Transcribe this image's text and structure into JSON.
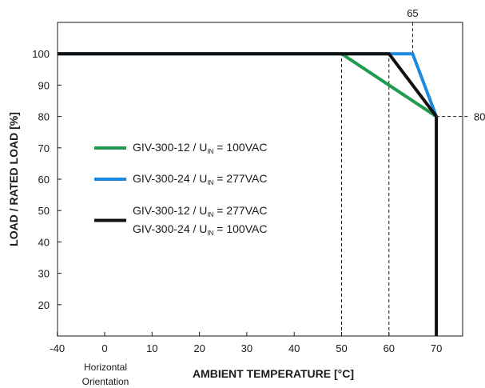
{
  "chart_data": {
    "type": "line",
    "title": "",
    "xlabel": "AMBIENT TEMPERATURE [°C]",
    "ylabel": "LOAD / RATED LOAD [%]",
    "x_note": [
      "Horizontal",
      "Orientation"
    ],
    "xticks": [
      -40,
      0,
      10,
      20,
      30,
      40,
      50,
      60,
      70
    ],
    "xtick_labels": [
      "-40",
      "0",
      "10",
      "20",
      "30",
      "40",
      "50",
      "60",
      "70"
    ],
    "yticks": [
      20,
      30,
      40,
      50,
      60,
      70,
      80,
      90,
      100
    ],
    "xlim": [
      -40,
      77
    ],
    "ylim": [
      10,
      110
    ],
    "grid": false,
    "legend_position": "center-left",
    "annotations": [
      {
        "label": "65",
        "x": 65
      },
      {
        "label": "80",
        "y": 80
      }
    ],
    "reference_lines": [
      {
        "orientation": "vertical",
        "x": 50,
        "from": 10,
        "to": 100
      },
      {
        "orientation": "vertical",
        "x": 60,
        "from": 10,
        "to": 100
      },
      {
        "orientation": "vertical",
        "x": 65,
        "from": 100,
        "to": 110
      },
      {
        "orientation": "horizontal",
        "y": 80,
        "from": 70,
        "to": 77
      }
    ],
    "series": [
      {
        "legend": [
          {
            "prefix": "GIV-300-12 / U",
            "sub": "IN",
            "suffix": "= 100VAC"
          }
        ],
        "color": "#1f9a4e",
        "x": [
          -40,
          50,
          70
        ],
        "y": [
          100,
          100,
          80
        ]
      },
      {
        "legend": [
          {
            "prefix": "GIV-300-24 / U",
            "sub": "IN",
            "suffix": "= 277VAC"
          }
        ],
        "color": "#1a8ae0",
        "x": [
          -40,
          65,
          70
        ],
        "y": [
          100,
          100,
          80
        ]
      },
      {
        "legend": [
          {
            "prefix": "GIV-300-12 / U",
            "sub": "IN",
            "suffix": "= 277VAC"
          },
          {
            "prefix": "GIV-300-24 / U",
            "sub": "IN",
            "suffix": "= 100VAC"
          }
        ],
        "color": "#111111",
        "x": [
          -40,
          60,
          70
        ],
        "y": [
          100,
          100,
          80
        ]
      }
    ],
    "cutoff": {
      "x": 70,
      "from": 80,
      "to": 10,
      "color": "#111111"
    }
  }
}
